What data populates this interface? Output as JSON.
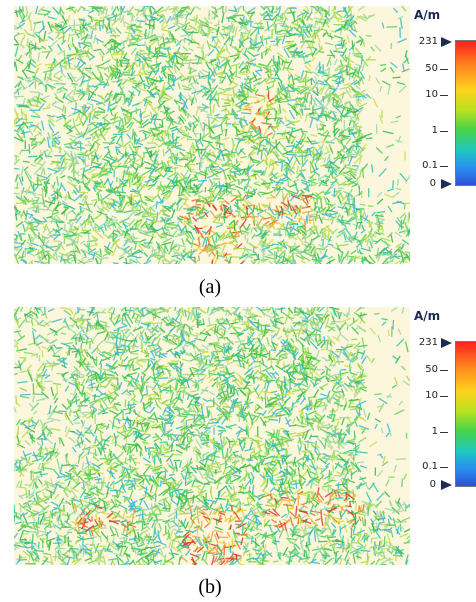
{
  "panels": [
    {
      "caption": "(a)",
      "unit": "A/m",
      "ticks": [
        {
          "label": "231",
          "value": 231
        },
        {
          "label": "50",
          "value": 50
        },
        {
          "label": "10",
          "value": 10
        },
        {
          "label": "1",
          "value": 1
        },
        {
          "label": "0.1",
          "value": 0.1
        },
        {
          "label": "0",
          "value": 0
        }
      ]
    },
    {
      "caption": "(b)",
      "unit": "A/m",
      "ticks": [
        {
          "label": "231",
          "value": 231
        },
        {
          "label": "50",
          "value": 50
        },
        {
          "label": "10",
          "value": 10
        },
        {
          "label": "1",
          "value": 1
        },
        {
          "label": "0.1",
          "value": 0.1
        },
        {
          "label": "0",
          "value": 0
        }
      ]
    }
  ],
  "colors": {
    "background": "#fbf6dc",
    "low": "#2d4fd6",
    "mid": "#45d24a",
    "high": "#ff1f1f"
  }
}
